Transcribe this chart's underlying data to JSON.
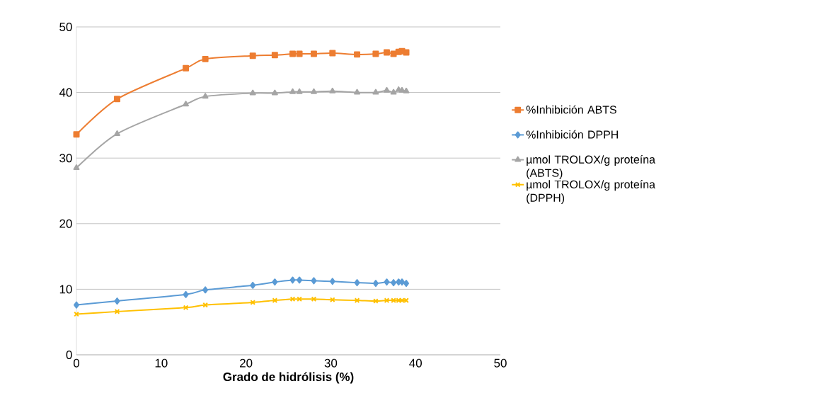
{
  "chart_data": {
    "type": "line",
    "xlabel": "Grado de hidrólisis (%)",
    "x": [
      0,
      4.8,
      12.9,
      15.2,
      20.8,
      23.4,
      25.5,
      26.3,
      28.0,
      30.2,
      33.1,
      35.3,
      36.6,
      37.4,
      38.0,
      38.4,
      38.9
    ],
    "series": [
      {
        "name": "%Inhibición ABTS",
        "color": "#ed7d31",
        "marker": "square",
        "values": [
          33.6,
          39.0,
          43.7,
          45.1,
          45.6,
          45.7,
          45.9,
          45.9,
          45.9,
          46.0,
          45.8,
          45.9,
          46.1,
          45.9,
          46.2,
          46.3,
          46.1
        ]
      },
      {
        "name": "%Inhibición DPPH",
        "color": "#5b9bd5",
        "marker": "diamond",
        "values": [
          7.6,
          8.2,
          9.2,
          9.9,
          10.6,
          11.1,
          11.4,
          11.4,
          11.3,
          11.2,
          11.0,
          10.9,
          11.1,
          11.0,
          11.1,
          11.1,
          10.9
        ]
      },
      {
        "name": "µmol TROLOX/g proteína (ABTS)",
        "color": "#a5a5a5",
        "marker": "triangle",
        "values": [
          28.5,
          33.7,
          38.2,
          39.4,
          39.9,
          39.9,
          40.1,
          40.1,
          40.1,
          40.2,
          40.0,
          40.0,
          40.3,
          40.0,
          40.4,
          40.3,
          40.2
        ]
      },
      {
        "name": "µmol TROLOX/g proteína (DPPH)",
        "color": "#ffc000",
        "marker": "cross",
        "values": [
          6.2,
          6.6,
          7.2,
          7.6,
          8.0,
          8.3,
          8.5,
          8.5,
          8.5,
          8.4,
          8.3,
          8.2,
          8.3,
          8.3,
          8.3,
          8.3,
          8.3
        ]
      }
    ],
    "xlim": [
      0,
      50
    ],
    "ylim": [
      0,
      50
    ],
    "xticks": [
      0,
      10,
      20,
      30,
      40,
      50
    ],
    "yticks": [
      0,
      10,
      20,
      30,
      40,
      50
    ],
    "grid": "y",
    "legend": "right",
    "line_style": "solid"
  }
}
